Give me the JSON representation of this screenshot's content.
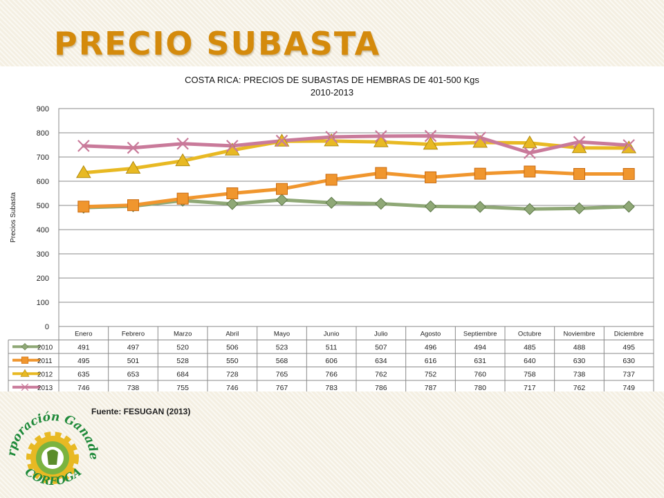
{
  "slide": {
    "title": "PRECIO SUBASTA",
    "source": "Fuente: FESUGAN (2013)"
  },
  "logo": {
    "top_text": "Corporación Ganadera",
    "bottom_text": "CORFOGA"
  },
  "chart_data": {
    "type": "line",
    "title": "COSTA RICA: PRECIOS DE SUBASTAS DE HEMBRAS DE 401-500 Kgs",
    "subtitle": "2010-2013",
    "xlabel": "",
    "ylabel": "Precios Subasta",
    "ylim": [
      0,
      900
    ],
    "yticks": [
      "0",
      "100",
      "200",
      "300",
      "400",
      "500",
      "600",
      "700",
      "800",
      "900"
    ],
    "grid": true,
    "legend": "data-table",
    "categories": [
      "Enero",
      "Febrero",
      "Marzo",
      "Abril",
      "Mayo",
      "Junio",
      "Julio",
      "Agosto",
      "Septiembre",
      "Octubre",
      "Noviembre",
      "Diciembre"
    ],
    "series": [
      {
        "name": "2010",
        "color": "#8fa876",
        "marker": "diamond",
        "values": [
          491,
          497,
          520,
          506,
          523,
          511,
          507,
          496,
          494,
          485,
          488,
          495
        ]
      },
      {
        "name": "2011",
        "color": "#f0962e",
        "marker": "square",
        "values": [
          495,
          501,
          528,
          550,
          568,
          606,
          634,
          616,
          631,
          640,
          630,
          630
        ]
      },
      {
        "name": "2012",
        "color": "#e8b923",
        "marker": "triangle",
        "values": [
          635,
          653,
          684,
          728,
          765,
          766,
          762,
          752,
          760,
          758,
          738,
          737
        ]
      },
      {
        "name": "2013",
        "color": "#c97a9a",
        "marker": "x",
        "values": [
          746,
          738,
          755,
          746,
          767,
          783,
          786,
          787,
          780,
          717,
          762,
          749
        ]
      }
    ]
  }
}
